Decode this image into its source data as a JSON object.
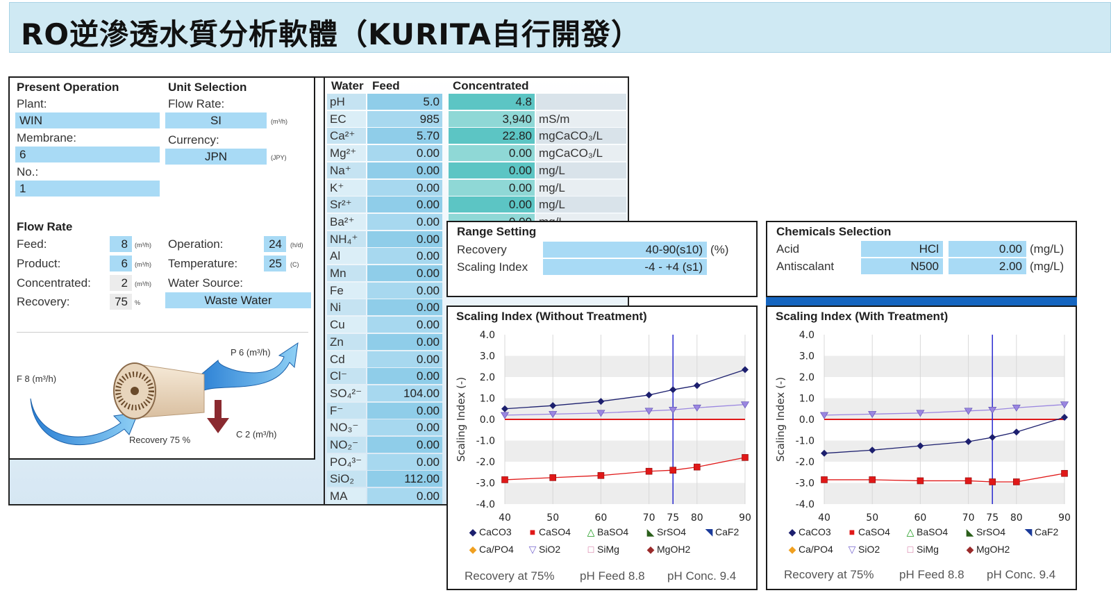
{
  "title": "RO逆滲透水質分析軟體（KURITA自行開發）",
  "present": {
    "header": "Present Operation",
    "plant_label": "Plant:",
    "plant": "WIN",
    "membrane_label": "Membrane:",
    "membrane": "6",
    "no_label": "No.:",
    "no": "1"
  },
  "unit": {
    "header": "Unit Selection",
    "flow_label": "Flow Rate:",
    "flow": "SI",
    "flow_unit": "(m³/h)",
    "currency_label": "Currency:",
    "currency": "JPN",
    "currency_unit": "(JPY)"
  },
  "flowrate": {
    "header": "Flow Rate",
    "feed_label": "Feed:",
    "feed": "8",
    "feed_unit": "(m³/h)",
    "product_label": "Product:",
    "product": "6",
    "product_unit": "(m³/h)",
    "conc_label": "Concentrated:",
    "conc": "2",
    "conc_unit": "(m³/h)",
    "recovery_label": "Recovery:",
    "recovery": "75",
    "recovery_unit": "%",
    "operation_label": "Operation:",
    "operation": "24",
    "operation_unit": "(h/d)",
    "temp_label": "Temperature:",
    "temp": "25",
    "temp_unit": "(C)",
    "source_label": "Water Source:",
    "source": "Waste Water"
  },
  "diagram": {
    "feed": "F 8 (m³/h)",
    "product": "P 6 (m³/h)",
    "conc": "C 2 (m³/h)",
    "recovery": "Recovery 75 %"
  },
  "water": {
    "h_water": "Water",
    "h_feed": "Feed",
    "h_conc": "Concentrated",
    "rows": [
      {
        "name": "pH",
        "feed": "5.0",
        "conc": "4.8",
        "unit": ""
      },
      {
        "name": "EC",
        "feed": "985",
        "conc": "3,940",
        "unit": "mS/m"
      },
      {
        "name": "Ca²⁺",
        "feed": "5.70",
        "conc": "22.80",
        "unit": "mgCaCO₃/L"
      },
      {
        "name": "Mg²⁺",
        "feed": "0.00",
        "conc": "0.00",
        "unit": "mgCaCO₃/L"
      },
      {
        "name": "Na⁺",
        "feed": "0.00",
        "conc": "0.00",
        "unit": "mg/L"
      },
      {
        "name": "K⁺",
        "feed": "0.00",
        "conc": "0.00",
        "unit": "mg/L"
      },
      {
        "name": "Sr²⁺",
        "feed": "0.00",
        "conc": "0.00",
        "unit": "mg/L"
      },
      {
        "name": "Ba²⁺",
        "feed": "0.00",
        "conc": "0.00",
        "unit": "mg/L"
      },
      {
        "name": "NH₄⁺",
        "feed": "0.00",
        "conc": "",
        "unit": ""
      },
      {
        "name": "Al",
        "feed": "0.00",
        "conc": "",
        "unit": ""
      },
      {
        "name": "Mn",
        "feed": "0.00",
        "conc": "",
        "unit": ""
      },
      {
        "name": "Fe",
        "feed": "0.00",
        "conc": "",
        "unit": ""
      },
      {
        "name": "Ni",
        "feed": "0.00",
        "conc": "",
        "unit": ""
      },
      {
        "name": "Cu",
        "feed": "0.00",
        "conc": "",
        "unit": ""
      },
      {
        "name": "Zn",
        "feed": "0.00",
        "conc": "",
        "unit": ""
      },
      {
        "name": "Cd",
        "feed": "0.00",
        "conc": "",
        "unit": ""
      },
      {
        "name": "Cl⁻",
        "feed": "0.00",
        "conc": "",
        "unit": ""
      },
      {
        "name": "SO₄²⁻",
        "feed": "104.00",
        "conc": "",
        "unit": ""
      },
      {
        "name": "F⁻",
        "feed": "0.00",
        "conc": "",
        "unit": ""
      },
      {
        "name": "NO₃⁻",
        "feed": "0.00",
        "conc": "",
        "unit": ""
      },
      {
        "name": "NO₂⁻",
        "feed": "0.00",
        "conc": "",
        "unit": ""
      },
      {
        "name": "PO₄³⁻",
        "feed": "0.00",
        "conc": "",
        "unit": ""
      },
      {
        "name": "SiO₂",
        "feed": "112.00",
        "conc": "",
        "unit": ""
      },
      {
        "name": "MA",
        "feed": "0.00",
        "conc": "",
        "unit": ""
      }
    ]
  },
  "range": {
    "header": "Range Setting",
    "recovery_label": "Recovery",
    "recovery": "40-90(s10)",
    "recovery_unit": "(%)",
    "scaling_label": "Scaling Index",
    "scaling": "-4 - +4 (s1)"
  },
  "chemicals": {
    "header": "Chemicals Selection",
    "acid_label": "Acid",
    "acid": "HCl",
    "acid_value": "0.00",
    "acid_unit": "(mg/L)",
    "anti_label": "Antiscalant",
    "anti": "N500",
    "anti_value": "2.00",
    "anti_unit": "(mg/L)"
  },
  "legend": [
    {
      "name": "CaCO3",
      "glyph": "◆",
      "color": "#1c1f6e"
    },
    {
      "name": "CaSO4",
      "glyph": "■",
      "color": "#e01818"
    },
    {
      "name": "BaSO4",
      "glyph": "△",
      "color": "#1a9a1a"
    },
    {
      "name": "SrSO4",
      "glyph": "◣",
      "color": "#2a5e1a"
    },
    {
      "name": "CaF2",
      "glyph": "◥",
      "color": "#1a3a9a"
    },
    {
      "name": "Ca/PO4",
      "glyph": "◆",
      "color": "#f0a020"
    },
    {
      "name": "SiO2",
      "glyph": "▽",
      "color": "#7a6ad0"
    },
    {
      "name": "SiMg",
      "glyph": "□",
      "color": "#d06a9a"
    },
    {
      "name": "MgOH2",
      "glyph": "◆",
      "color": "#9a2a2a"
    }
  ],
  "footer": {
    "recovery": "Recovery at 75%",
    "ph_feed": "pH Feed 8.8",
    "ph_conc": "pH Conc. 9.4"
  },
  "chart_data": [
    {
      "type": "line",
      "title": "Scaling Index (Without Treatment)",
      "ylabel": "Scaling Index (-)",
      "xlim": [
        40,
        90
      ],
      "ylim": [
        -4,
        4
      ],
      "x_ticks": [
        40,
        50,
        60,
        70,
        75,
        80,
        90
      ],
      "y_ticks": [
        "4.0",
        "3.0",
        "2.0",
        "1.0",
        "0.0",
        "-1.0",
        "-2.0",
        "-3.0",
        "-4.0"
      ],
      "marker_line_x": 75,
      "series": [
        {
          "name": "CaCO3",
          "color": "#1c1f6e",
          "marker": "diamond",
          "x": [
            40,
            50,
            60,
            70,
            75,
            80,
            90
          ],
          "y": [
            0.5,
            0.65,
            0.85,
            1.15,
            1.4,
            1.6,
            2.35
          ]
        },
        {
          "name": "SiO2",
          "color": "#9a86e0",
          "marker": "tri-down",
          "x": [
            40,
            50,
            60,
            70,
            75,
            80,
            90
          ],
          "y": [
            0.2,
            0.25,
            0.3,
            0.4,
            0.45,
            0.55,
            0.7
          ]
        },
        {
          "name": "CaSO4",
          "color": "#e01818",
          "marker": "square",
          "x": [
            40,
            50,
            60,
            70,
            75,
            80,
            90
          ],
          "y": [
            -2.85,
            -2.75,
            -2.65,
            -2.45,
            -2.4,
            -2.25,
            -1.8
          ]
        }
      ],
      "zero_line": 0
    },
    {
      "type": "line",
      "title": "Scaling Index (With Treatment)",
      "ylabel": "Scaling Index (-)",
      "xlim": [
        40,
        90
      ],
      "ylim": [
        -4,
        4
      ],
      "x_ticks": [
        40,
        50,
        60,
        70,
        75,
        80,
        90
      ],
      "y_ticks": [
        "4.0",
        "3.0",
        "2.0",
        "1.0",
        "0.0",
        "-1.0",
        "-2.0",
        "-3.0",
        "-4.0"
      ],
      "marker_line_x": 75,
      "series": [
        {
          "name": "CaCO3",
          "color": "#1c1f6e",
          "marker": "diamond",
          "x": [
            40,
            50,
            60,
            70,
            75,
            80,
            90
          ],
          "y": [
            -1.6,
            -1.45,
            -1.25,
            -1.05,
            -0.85,
            -0.6,
            0.1
          ]
        },
        {
          "name": "SiO2",
          "color": "#9a86e0",
          "marker": "tri-down",
          "x": [
            40,
            50,
            60,
            70,
            75,
            80,
            90
          ],
          "y": [
            0.2,
            0.25,
            0.3,
            0.4,
            0.45,
            0.55,
            0.7
          ]
        },
        {
          "name": "CaSO4",
          "color": "#e01818",
          "marker": "square",
          "x": [
            40,
            50,
            60,
            70,
            75,
            80,
            90
          ],
          "y": [
            -2.85,
            -2.85,
            -2.9,
            -2.9,
            -2.95,
            -2.95,
            -2.55
          ]
        }
      ],
      "zero_line": 0
    }
  ]
}
